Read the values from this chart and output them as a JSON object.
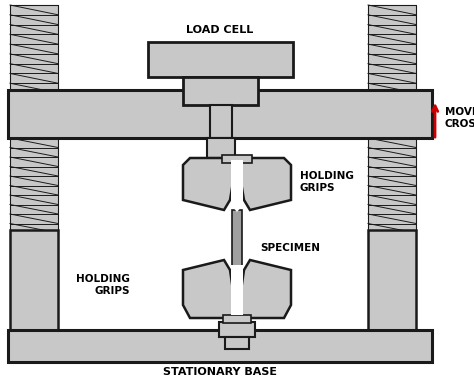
{
  "background_color": "#ffffff",
  "gray_fill": "#c8c8c8",
  "dark_outline": "#1a1a1a",
  "title_text": "STATIONARY BASE",
  "label_load_cell": "LOAD CELL",
  "label_moving_crosshead": "MOVING\nCROSSHEAD",
  "label_holding_grips_top": "HOLDING\nGRIPS",
  "label_holding_grips_bottom": "HOLDING\nGRIPS",
  "label_specimen": "SPECIMEN",
  "arrow_color": "#cc0000",
  "text_color": "#000000",
  "lw": 1.8,
  "figw": 4.74,
  "figh": 3.79,
  "dpi": 100
}
